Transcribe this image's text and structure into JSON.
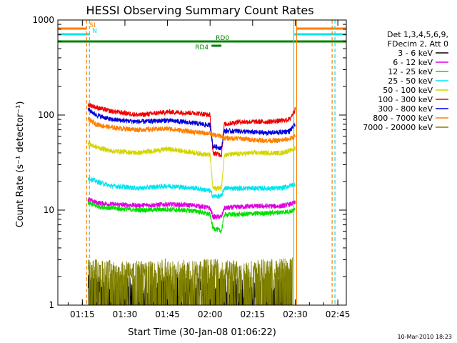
{
  "chart_data": {
    "type": "line",
    "title": "HESSI Observing Summary Count Rates",
    "xlabel": "Start Time (30-Jan-08 01:06:22)",
    "ylabel": "Count Rate (s⁻¹ detector⁻¹)",
    "y_scale": "log",
    "xlim": [
      "01:06:22",
      "02:48:00"
    ],
    "ylim": [
      1,
      1000
    ],
    "x_ticks": [
      "01:15",
      "01:30",
      "01:45",
      "02:00",
      "02:15",
      "02:30",
      "02:45"
    ],
    "y_ticks": [
      "1",
      "10",
      "100",
      "1000"
    ],
    "legend_header": [
      "Det 1,3,4,5,6,9,",
      "FDecim 2, Att 0"
    ],
    "series": [
      {
        "name": "3 - 6 keV",
        "color": "#000000",
        "x": [
          "01:17",
          "01:25",
          "01:35",
          "01:45",
          "01:55",
          "02:05",
          "02:15",
          "02:25",
          "02:29"
        ],
        "y": [
          1.6,
          1.5,
          1.5,
          1.6,
          1.5,
          1.5,
          1.5,
          1.5,
          1.6
        ]
      },
      {
        "name": "6 - 12 keV",
        "color": "#e000e0",
        "x": [
          "01:17",
          "01:20",
          "01:25",
          "01:35",
          "01:45",
          "01:55",
          "02:00",
          "02:01",
          "02:04",
          "02:05",
          "02:10",
          "02:15",
          "02:20",
          "02:25",
          "02:28",
          "02:30"
        ],
        "y": [
          13,
          12,
          11.5,
          11.2,
          11.5,
          11.2,
          10.5,
          8.5,
          8.5,
          10.5,
          10.8,
          11,
          11,
          11,
          11.5,
          12
        ]
      },
      {
        "name": "12 - 25 keV",
        "color": "#00e000",
        "x": [
          "01:17",
          "01:20",
          "01:25",
          "01:35",
          "01:45",
          "01:55",
          "02:00",
          "02:01",
          "02:04",
          "02:05",
          "02:10",
          "02:15",
          "02:20",
          "02:25",
          "02:28",
          "02:30"
        ],
        "y": [
          12,
          11,
          10.5,
          10,
          10.2,
          9.8,
          9,
          6.5,
          6,
          9,
          9,
          9.2,
          9.3,
          9.5,
          9.7,
          10
        ]
      },
      {
        "name": "25 - 50 keV",
        "color": "#00e5ee",
        "x": [
          "01:17",
          "01:20",
          "01:25",
          "01:35",
          "01:45",
          "01:55",
          "02:00",
          "02:01",
          "02:04",
          "02:05",
          "02:10",
          "02:15",
          "02:20",
          "02:25",
          "02:28",
          "02:30"
        ],
        "y": [
          22,
          20,
          18,
          17,
          18,
          17,
          16,
          14,
          14,
          17,
          17,
          17,
          17,
          17,
          18,
          19
        ]
      },
      {
        "name": "50 - 100 keV",
        "color": "#d4d400",
        "x": [
          "01:17",
          "01:20",
          "01:25",
          "01:35",
          "01:45",
          "01:55",
          "02:00",
          "02:01",
          "02:04",
          "02:05",
          "02:10",
          "02:15",
          "02:20",
          "02:25",
          "02:28",
          "02:30"
        ],
        "y": [
          50,
          46,
          42,
          40,
          44,
          40,
          38,
          17,
          17,
          38,
          39,
          40,
          40,
          40,
          42,
          45
        ]
      },
      {
        "name": "100 - 300 keV",
        "color": "#ee0000",
        "x": [
          "01:17",
          "01:20",
          "01:25",
          "01:35",
          "01:45",
          "01:55",
          "02:00",
          "02:01",
          "02:04",
          "02:05",
          "02:10",
          "02:15",
          "02:20",
          "02:25",
          "02:28",
          "02:30"
        ],
        "y": [
          130,
          120,
          110,
          100,
          108,
          105,
          100,
          40,
          38,
          80,
          85,
          85,
          85,
          87,
          90,
          115
        ]
      },
      {
        "name": "300 - 800 keV",
        "color": "#0000dd",
        "x": [
          "01:17",
          "01:20",
          "01:25",
          "01:35",
          "01:45",
          "01:55",
          "02:00",
          "02:01",
          "02:04",
          "02:05",
          "02:10",
          "02:15",
          "02:20",
          "02:25",
          "02:28",
          "02:30"
        ],
        "y": [
          115,
          100,
          90,
          85,
          88,
          82,
          78,
          47,
          45,
          68,
          68,
          66,
          65,
          66,
          68,
          80
        ]
      },
      {
        "name": "800 - 7000 keV",
        "color": "#ff7f00",
        "x": [
          "01:17",
          "01:20",
          "01:25",
          "01:35",
          "01:45",
          "01:55",
          "02:00",
          "02:01",
          "02:04",
          "02:05",
          "02:10",
          "02:15",
          "02:20",
          "02:25",
          "02:28",
          "02:30"
        ],
        "y": [
          90,
          80,
          74,
          70,
          72,
          66,
          64,
          62,
          60,
          57,
          57,
          55,
          54,
          54,
          56,
          60
        ]
      },
      {
        "name": "7000 - 20000 keV",
        "color": "#808000",
        "x": [
          "01:17",
          "01:25",
          "01:35",
          "01:45",
          "01:55",
          "02:00",
          "02:05",
          "02:15",
          "02:25",
          "02:29"
        ],
        "y": [
          2.4,
          2.3,
          2.3,
          2.4,
          2.3,
          2.4,
          2.3,
          2.3,
          2.4,
          2.5
        ]
      }
    ],
    "flags": [
      {
        "label": "SI",
        "color": "#ff7f00",
        "start": "01:06:22",
        "end": "01:16:30"
      },
      {
        "label": "N",
        "color": "#00e5ee",
        "start": "01:06:22",
        "end": "01:17:30"
      },
      {
        "label": "RD0",
        "color": "#008000",
        "start": "01:06:22",
        "end": "02:48:00"
      },
      {
        "label": "RD4",
        "color": "#008000",
        "start": "02:00:30",
        "end": "02:04:00"
      }
    ],
    "vertical_markers": [
      {
        "time": "01:16:30",
        "color": "#ff7f00",
        "style": "dashed"
      },
      {
        "time": "01:17:30",
        "color": "#00e5ee",
        "style": "dashed"
      },
      {
        "time": "02:29:30",
        "color": "#00e5ee",
        "style": "solid"
      },
      {
        "time": "02:30:30",
        "color": "#ff7f00",
        "style": "solid"
      },
      {
        "time": "02:43:00",
        "color": "#ff7f00",
        "style": "dashed"
      },
      {
        "time": "02:44:00",
        "color": "#00e5ee",
        "style": "dashed"
      }
    ]
  },
  "footer": {
    "timestamp": "10-Mar-2010 18:23"
  }
}
